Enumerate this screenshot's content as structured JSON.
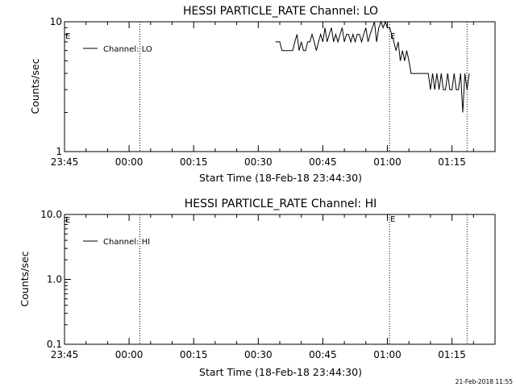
{
  "chart_data": [
    {
      "type": "line",
      "title": "HESSI PARTICLE_RATE Channel: LO",
      "xlabel": "Start Time (18-Feb-18 23:44:30)",
      "ylabel": "Counts/sec",
      "yscale": "log",
      "ylim": [
        1,
        10
      ],
      "yticks": [
        {
          "value": 10,
          "label": "10"
        },
        {
          "value": 1,
          "label": "1"
        }
      ],
      "xticks": [
        "23:45",
        "00:00",
        "00:15",
        "00:30",
        "00:45",
        "01:00",
        "01:15"
      ],
      "legend": "upper-left",
      "event_marks": [
        {
          "time": "00:02:30",
          "label": ""
        },
        {
          "time": "01:00:30",
          "label": "E"
        },
        {
          "time": "01:18:30",
          "label": ""
        }
      ],
      "series": [
        {
          "name": "Channel: LO",
          "points": [
            [
              "00:34:00",
              7
            ],
            [
              "00:35:00",
              7
            ],
            [
              "00:35:30",
              6
            ],
            [
              "00:38:00",
              6
            ],
            [
              "00:38:30",
              7
            ],
            [
              "00:39:00",
              8
            ],
            [
              "00:39:30",
              6
            ],
            [
              "00:40:00",
              7
            ],
            [
              "00:40:30",
              6
            ],
            [
              "00:41:00",
              6
            ],
            [
              "00:41:30",
              7
            ],
            [
              "00:42:00",
              7
            ],
            [
              "00:42:30",
              8
            ],
            [
              "00:43:00",
              7
            ],
            [
              "00:43:30",
              6
            ],
            [
              "00:44:00",
              7
            ],
            [
              "00:44:30",
              8
            ],
            [
              "00:45:00",
              7
            ],
            [
              "00:45:30",
              9
            ],
            [
              "00:46:00",
              7
            ],
            [
              "00:46:30",
              8
            ],
            [
              "00:47:00",
              9
            ],
            [
              "00:47:30",
              7
            ],
            [
              "00:48:00",
              8
            ],
            [
              "00:48:30",
              7
            ],
            [
              "00:49:00",
              8
            ],
            [
              "00:49:30",
              9
            ],
            [
              "00:50:00",
              7
            ],
            [
              "00:50:30",
              8
            ],
            [
              "00:51:00",
              8
            ],
            [
              "00:51:30",
              7
            ],
            [
              "00:52:00",
              8
            ],
            [
              "00:52:30",
              7
            ],
            [
              "00:53:00",
              8
            ],
            [
              "00:53:30",
              8
            ],
            [
              "00:54:00",
              7
            ],
            [
              "00:54:30",
              8
            ],
            [
              "00:55:00",
              9
            ],
            [
              "00:55:30",
              7
            ],
            [
              "00:56:00",
              8
            ],
            [
              "00:56:30",
              9
            ],
            [
              "00:57:00",
              10
            ],
            [
              "00:57:30",
              7
            ],
            [
              "00:58:00",
              9
            ],
            [
              "00:58:30",
              10
            ],
            [
              "00:59:00",
              9
            ],
            [
              "00:59:30",
              10
            ],
            [
              "01:00:00",
              9
            ],
            [
              "01:00:30",
              9
            ],
            [
              "01:01:00",
              8
            ],
            [
              "01:01:30",
              7
            ],
            [
              "01:02:00",
              6
            ],
            [
              "01:02:30",
              7
            ],
            [
              "01:03:00",
              5
            ],
            [
              "01:03:30",
              6
            ],
            [
              "01:04:00",
              5
            ],
            [
              "01:04:30",
              6
            ],
            [
              "01:05:00",
              5
            ],
            [
              "01:05:30",
              4
            ],
            [
              "01:06:00",
              4
            ],
            [
              "01:09:30",
              4
            ],
            [
              "01:10:00",
              3
            ],
            [
              "01:10:30",
              4
            ],
            [
              "01:11:00",
              3
            ],
            [
              "01:11:30",
              4
            ],
            [
              "01:12:00",
              3
            ],
            [
              "01:12:30",
              4
            ],
            [
              "01:13:00",
              3
            ],
            [
              "01:13:30",
              3
            ],
            [
              "01:14:00",
              4
            ],
            [
              "01:14:30",
              3
            ],
            [
              "01:15:00",
              3
            ],
            [
              "01:15:30",
              4
            ],
            [
              "01:16:00",
              3
            ],
            [
              "01:16:30",
              3
            ],
            [
              "01:17:00",
              4
            ],
            [
              "01:17:30",
              2
            ],
            [
              "01:18:00",
              4
            ],
            [
              "01:18:30",
              3
            ],
            [
              "01:19:00",
              4
            ]
          ]
        }
      ]
    },
    {
      "type": "line",
      "title": "HESSI PARTICLE_RATE Channel: HI",
      "xlabel": "Start Time (18-Feb-18 23:44:30)",
      "ylabel": "Counts/sec",
      "yscale": "log",
      "ylim": [
        0.1,
        10
      ],
      "yticks": [
        {
          "value": 10,
          "label": "10.0"
        },
        {
          "value": 1,
          "label": "1.0"
        },
        {
          "value": 0.1,
          "label": "0.1"
        }
      ],
      "xticks": [
        "23:45",
        "00:00",
        "00:15",
        "00:30",
        "00:45",
        "01:00",
        "01:15"
      ],
      "legend": "upper-left",
      "event_marks": [
        {
          "time": "00:02:30",
          "label": ""
        },
        {
          "time": "01:00:30",
          "label": "E"
        },
        {
          "time": "01:18:30",
          "label": ""
        }
      ],
      "series": [
        {
          "name": "Channel: HI",
          "points": []
        }
      ]
    }
  ],
  "plots": [
    {
      "corner_label": "E"
    },
    {
      "corner_label": "E"
    }
  ],
  "footer_timestamp": "21-Feb-2018 11:55"
}
